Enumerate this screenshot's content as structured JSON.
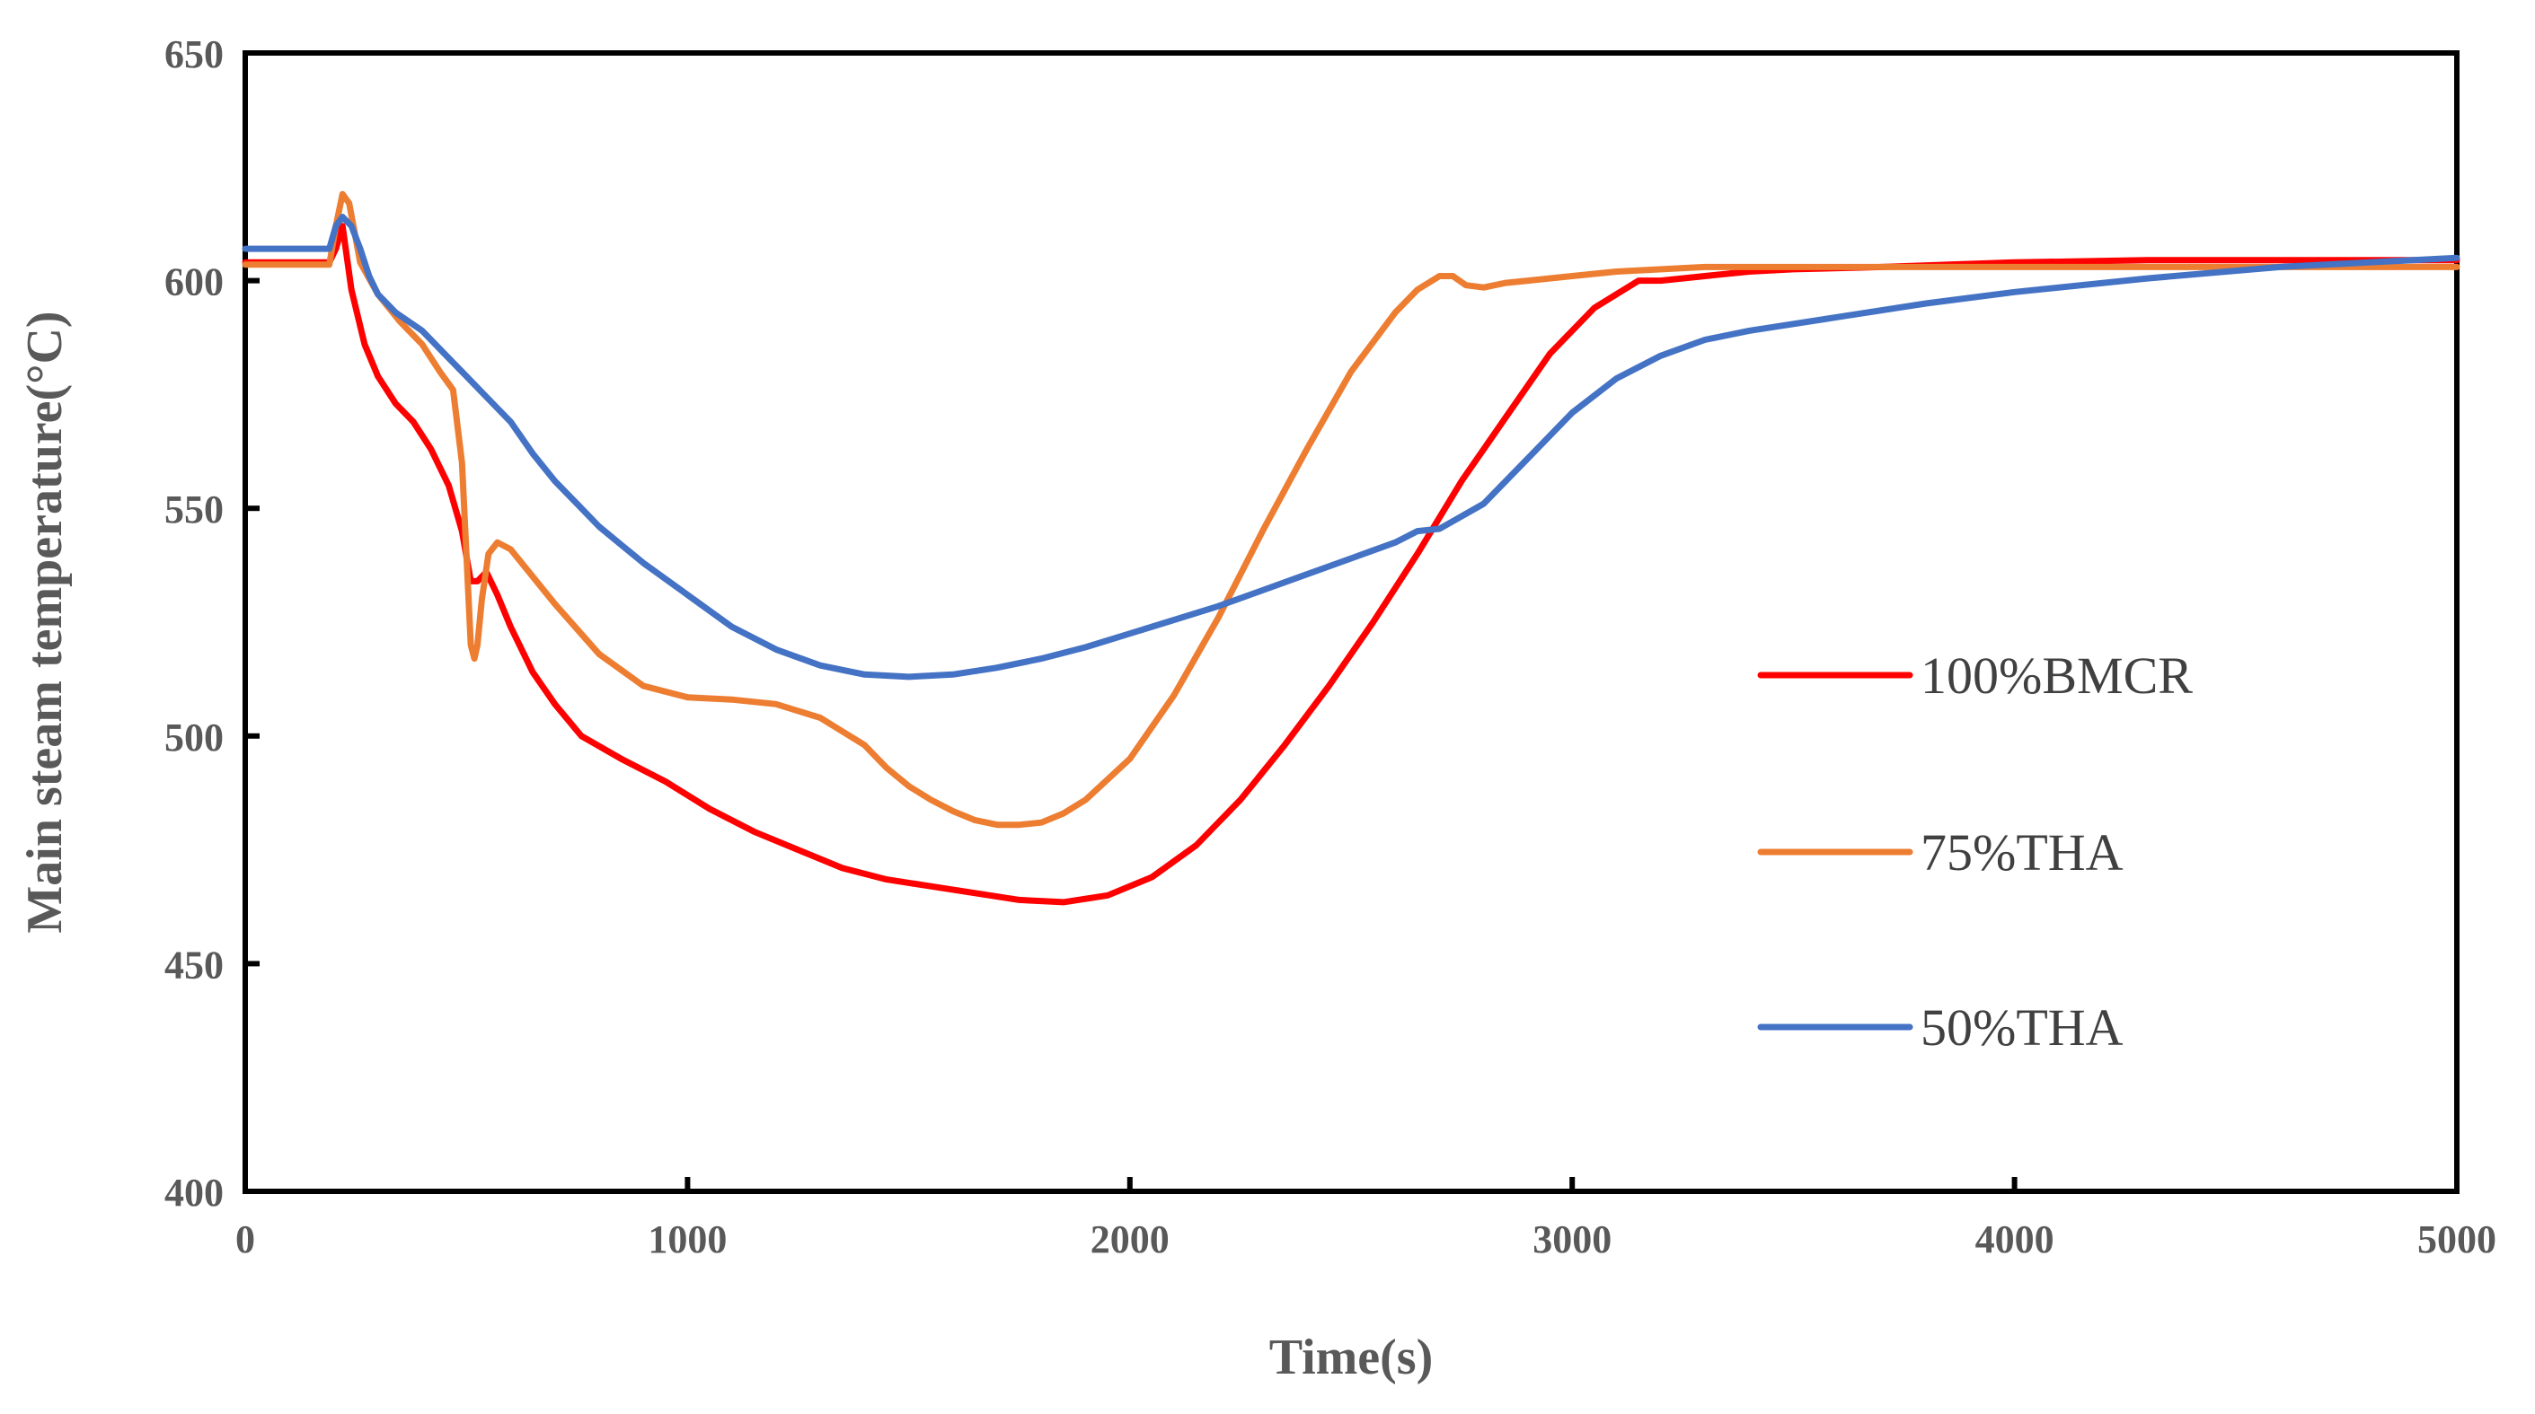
{
  "chart_data": {
    "type": "line",
    "title": "",
    "xlabel": "Time(s)",
    "ylabel": "Main steam temperature(°C)",
    "xlim": [
      0,
      5000
    ],
    "ylim": [
      400,
      650
    ],
    "xticks": [
      0,
      1000,
      2000,
      3000,
      4000,
      5000
    ],
    "yticks": [
      400,
      450,
      500,
      550,
      600,
      650
    ],
    "xtick_labels": [
      "0",
      "1000",
      "2000",
      "3000",
      "4000",
      "5000"
    ],
    "ytick_labels": [
      "400",
      "450",
      "500",
      "550",
      "600",
      "650"
    ],
    "grid": false,
    "legend_position": "right",
    "series": [
      {
        "name": "100%BMCR",
        "color": "#ff0000",
        "x": [
          0,
          190,
          205,
          220,
          240,
          270,
          300,
          340,
          380,
          420,
          460,
          490,
          510,
          525,
          545,
          570,
          600,
          650,
          700,
          760,
          850,
          950,
          1050,
          1150,
          1250,
          1350,
          1450,
          1550,
          1650,
          1750,
          1850,
          1950,
          2050,
          2150,
          2250,
          2350,
          2450,
          2550,
          2650,
          2750,
          2850,
          2950,
          3050,
          3150,
          3200,
          3300,
          3400,
          3500,
          3700,
          4000,
          4300,
          4700,
          5000
        ],
        "y": [
          604,
          604,
          607,
          612,
          598,
          586,
          579,
          573,
          569,
          563,
          555,
          545,
          534,
          534,
          536,
          531,
          524,
          514,
          507,
          500,
          495,
          490,
          484,
          479,
          475,
          471,
          468.5,
          467,
          465.5,
          464,
          463.5,
          465,
          469,
          476,
          486,
          498,
          511,
          525,
          540,
          556,
          570,
          584,
          594,
          600,
          600,
          601,
          602,
          602.5,
          603,
          604,
          604.5,
          604.5,
          604.5
        ]
      },
      {
        "name": "75%THA",
        "color": "#ed7d31",
        "x": [
          0,
          190,
          205,
          220,
          235,
          260,
          300,
          350,
          400,
          440,
          470,
          490,
          500,
          510,
          518,
          525,
          535,
          550,
          570,
          600,
          650,
          700,
          800,
          900,
          1000,
          1100,
          1200,
          1300,
          1350,
          1400,
          1450,
          1500,
          1550,
          1600,
          1650,
          1700,
          1750,
          1800,
          1850,
          1900,
          2000,
          2100,
          2200,
          2300,
          2400,
          2500,
          2600,
          2650,
          2700,
          2730,
          2760,
          2800,
          2850,
          2900,
          3000,
          3100,
          3300,
          3500,
          4000,
          5000
        ],
        "y": [
          603.5,
          603.5,
          612,
          619,
          617,
          604,
          597,
          591,
          586,
          580,
          576,
          560,
          540,
          520,
          517,
          520,
          530,
          540,
          542.5,
          541,
          535,
          529,
          518,
          511,
          508.5,
          508,
          507,
          504,
          501,
          498,
          493,
          489,
          486,
          483.5,
          481.5,
          480.5,
          480.5,
          481,
          483,
          486,
          495,
          509,
          526,
          545,
          563,
          580,
          593,
          598,
          601,
          601,
          599,
          598.5,
          599.5,
          600,
          601,
          602,
          603,
          603,
          603,
          603
        ]
      },
      {
        "name": "50%THA",
        "color": "#4472c4",
        "x": [
          0,
          190,
          205,
          220,
          240,
          260,
          280,
          300,
          340,
          400,
          450,
          500,
          550,
          600,
          650,
          700,
          750,
          800,
          850,
          900,
          1000,
          1100,
          1200,
          1300,
          1400,
          1500,
          1600,
          1700,
          1800,
          1900,
          2000,
          2100,
          2200,
          2300,
          2400,
          2500,
          2600,
          2650,
          2700,
          2800,
          2900,
          3000,
          3100,
          3200,
          3300,
          3400,
          3600,
          3800,
          4000,
          4300,
          4600,
          5000
        ],
        "y": [
          607,
          607,
          612,
          614,
          612,
          607,
          601,
          597,
          593,
          589,
          584,
          579,
          574,
          569,
          562,
          556,
          551,
          546,
          542,
          538,
          531,
          524,
          519,
          515.5,
          513.5,
          513,
          513.5,
          515,
          517,
          519.5,
          522.5,
          525.5,
          528.5,
          532,
          535.5,
          539,
          542.5,
          545,
          545.5,
          551,
          561,
          571,
          578.5,
          583.5,
          587,
          589,
          592,
          595,
          597.5,
          600.5,
          603,
          605
        ]
      }
    ]
  }
}
